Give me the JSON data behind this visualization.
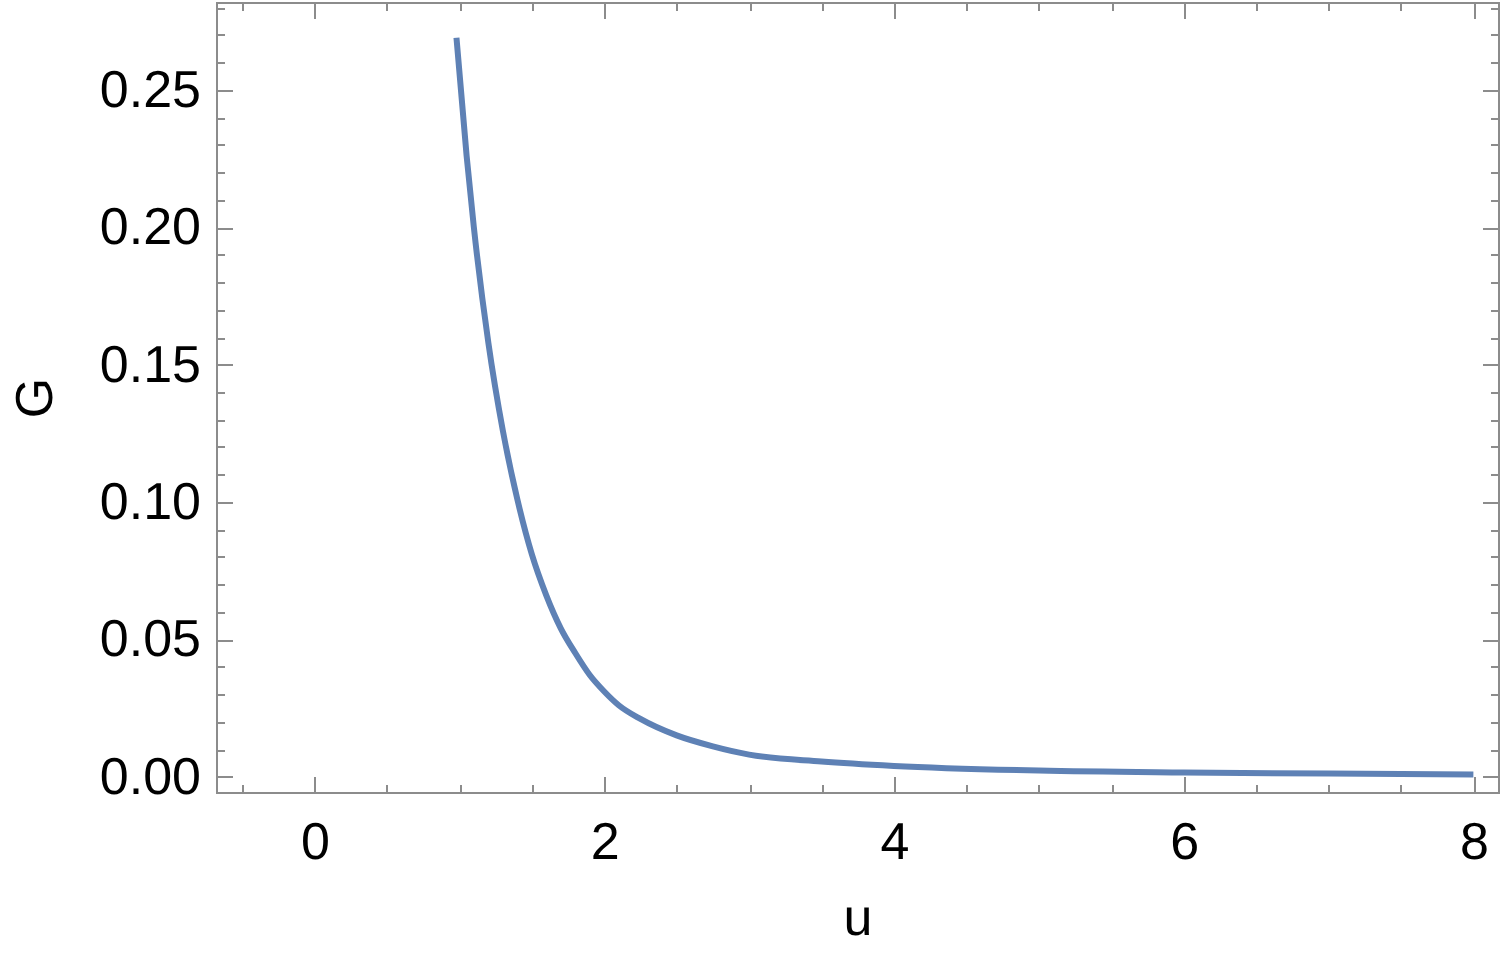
{
  "chart_data": {
    "type": "line",
    "xlabel": "u",
    "ylabel": "G",
    "x": [
      0.98,
      1.05,
      1.1,
      1.2,
      1.3,
      1.4,
      1.5,
      1.6,
      1.7,
      1.8,
      1.9,
      2.0,
      2.1,
      2.25,
      2.5,
      2.75,
      3.0,
      3.5,
      4.0,
      5.0,
      6.0,
      7.0,
      8.0
    ],
    "series": [
      {
        "color": "#5e81b5",
        "values": [
          0.269,
          0.226,
          0.2,
          0.158,
          0.126,
          0.101,
          0.081,
          0.066,
          0.054,
          0.045,
          0.037,
          0.031,
          0.026,
          0.021,
          0.015,
          0.011,
          0.008,
          0.0055,
          0.0039,
          0.0022,
          0.0015,
          0.0011,
          0.0008
        ]
      }
    ],
    "xlim": [
      -0.68,
      8.17
    ],
    "ylim": [
      -0.0056,
      0.282
    ],
    "xticks": [
      {
        "value": -0.5,
        "label": null
      },
      0,
      {
        "value": 0.5,
        "label": null
      },
      {
        "value": 1,
        "label": null
      },
      {
        "value": 1.5,
        "label": null
      },
      2,
      {
        "value": 2.5,
        "label": null
      },
      {
        "value": 3,
        "label": null
      },
      {
        "value": 3.5,
        "label": null
      },
      4,
      {
        "value": 4.5,
        "label": null
      },
      {
        "value": 5,
        "label": null
      },
      {
        "value": 5.5,
        "label": null
      },
      6,
      {
        "value": 6.5,
        "label": null
      },
      {
        "value": 7,
        "label": null
      },
      {
        "value": 7.5,
        "label": null
      },
      8
    ],
    "yticks": [
      {
        "value": 0,
        "label": "0.00"
      },
      {
        "value": 0.01,
        "label": null
      },
      {
        "value": 0.02,
        "label": null
      },
      {
        "value": 0.03,
        "label": null
      },
      {
        "value": 0.04,
        "label": null
      },
      0.05,
      {
        "value": 0.06,
        "label": null
      },
      {
        "value": 0.07,
        "label": null
      },
      {
        "value": 0.08,
        "label": null
      },
      {
        "value": 0.09,
        "label": null
      },
      {
        "value": 0.1,
        "label": "0.10"
      },
      {
        "value": 0.11,
        "label": null
      },
      {
        "value": 0.12,
        "label": null
      },
      {
        "value": 0.13,
        "label": null
      },
      {
        "value": 0.14,
        "label": null
      },
      0.15,
      {
        "value": 0.16,
        "label": null
      },
      {
        "value": 0.17,
        "label": null
      },
      {
        "value": 0.18,
        "label": null
      },
      {
        "value": 0.19,
        "label": null
      },
      {
        "value": 0.2,
        "label": "0.20"
      },
      {
        "value": 0.21,
        "label": null
      },
      {
        "value": 0.22,
        "label": null
      },
      {
        "value": 0.23,
        "label": null
      },
      {
        "value": 0.24,
        "label": null
      },
      0.25,
      {
        "value": 0.26,
        "label": null
      },
      {
        "value": 0.27,
        "label": null
      },
      {
        "value": 0.28,
        "label": null
      }
    ]
  }
}
